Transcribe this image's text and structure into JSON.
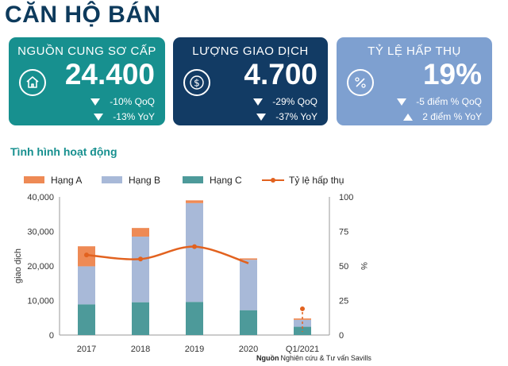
{
  "title": "CĂN HỘ BÁN",
  "cards": [
    {
      "label": "NGUỒN CUNG SƠ CẤP",
      "value": "24.400",
      "icon": "house-icon",
      "rows": [
        {
          "dir": "down",
          "text": "-10% QoQ"
        },
        {
          "dir": "down",
          "text": "-13% YoY"
        }
      ]
    },
    {
      "label": "LƯỢNG GIAO DỊCH",
      "value": "4.700",
      "icon": "dollar-coin-icon",
      "rows": [
        {
          "dir": "down",
          "text": "-29% QoQ"
        },
        {
          "dir": "down",
          "text": "-37% YoY"
        }
      ]
    },
    {
      "label": "TỶ LỆ HẤP THỤ",
      "value": "19%",
      "icon": "percent-icon",
      "rows": [
        {
          "dir": "down",
          "text": "-5 điểm % QoQ"
        },
        {
          "dir": "up",
          "text": "2 điểm % YoY"
        }
      ]
    }
  ],
  "section_title": "Tình hình hoạt động",
  "source": {
    "label": "Nguồn",
    "text": "Nghiên cứu & Tư vấn Savills"
  },
  "colors": {
    "hang_a": "#ee8a55",
    "hang_b": "#a8b9d8",
    "hang_c": "#4d9a9a",
    "absorption": "#e2621f"
  },
  "chart_data": {
    "type": "bar",
    "stacked": true,
    "categories": [
      "2017",
      "2018",
      "2019",
      "2020",
      "Q1/2021"
    ],
    "series": [
      {
        "name": "Hạng A",
        "axis": "left",
        "values": [
          5800,
          2500,
          800,
          400,
          400
        ]
      },
      {
        "name": "Hạng B",
        "axis": "left",
        "values": [
          11000,
          19000,
          28600,
          14600,
          2000
        ]
      },
      {
        "name": "Hạng C",
        "axis": "left",
        "values": [
          8900,
          9500,
          9600,
          7200,
          2400
        ]
      },
      {
        "name": "Tỷ lệ hấp thụ",
        "type": "line",
        "axis": "right",
        "values": [
          58,
          55,
          64,
          52,
          19
        ]
      }
    ],
    "ylabel": "giao dịch",
    "ylabel_right": "%",
    "ylim": [
      0,
      40000
    ],
    "ylim_right": [
      0,
      100
    ],
    "yticks": [
      "0",
      "10,000",
      "20,000",
      "30,000",
      "40,000"
    ],
    "yticks_right": [
      "0",
      "25",
      "50",
      "75",
      "100"
    ],
    "legend_position": "top",
    "grid": false
  }
}
